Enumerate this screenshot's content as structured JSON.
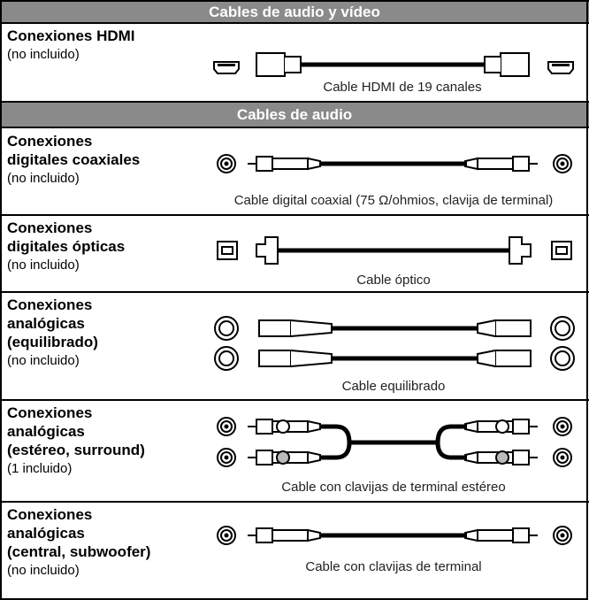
{
  "sections": [
    {
      "title": "Cables de audio y vídeo",
      "rows": [
        {
          "label": [
            "Conexiones HDMI"
          ],
          "note": "(no incluido)",
          "caption": "Cable HDMI de 19 canales"
        }
      ]
    },
    {
      "title": "Cables de audio",
      "rows": [
        {
          "label": [
            "Conexiones",
            "digitales coaxiales"
          ],
          "note": "(no incluido)",
          "caption": "Cable digital coaxial (75 Ω/ohmios, clavija de terminal)"
        },
        {
          "label": [
            "Conexiones",
            "digitales ópticas"
          ],
          "note": "(no incluido)",
          "caption": "Cable óptico"
        },
        {
          "label": [
            "Conexiones",
            "analógicas",
            "(equilibrado)"
          ],
          "note": "(no incluido)",
          "caption": "Cable equilibrado"
        },
        {
          "label": [
            "Conexiones",
            "analógicas",
            "(estéreo, surround)"
          ],
          "note": "(1 incluido)",
          "caption": "Cable con clavijas de terminal estéreo"
        },
        {
          "label": [
            "Conexiones",
            "analógicas",
            "(central, subwoofer)"
          ],
          "note": "(no incluido)",
          "caption": "Cable con clavijas de terminal"
        }
      ]
    }
  ]
}
